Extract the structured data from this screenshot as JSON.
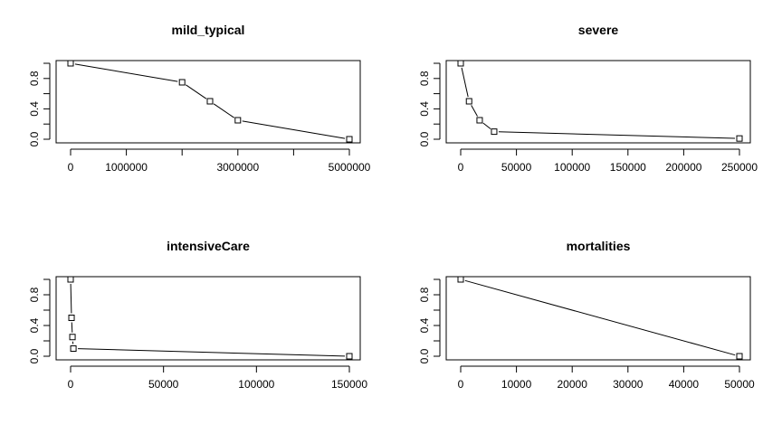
{
  "chart_data": [
    {
      "type": "line",
      "title": "mild_typical",
      "xlabel": "",
      "ylabel": "",
      "marker": "square",
      "x": [
        0,
        2000000,
        2500000,
        3000000,
        5000000
      ],
      "y": [
        1.0,
        0.75,
        0.5,
        0.25,
        0.0
      ],
      "xlim": [
        0,
        5000000
      ],
      "ylim": [
        0,
        1
      ],
      "x_ticks": [
        0,
        1000000,
        2000000,
        3000000,
        4000000,
        5000000
      ],
      "x_tick_labels": [
        "0",
        "1000000",
        "",
        "3000000",
        "",
        "5000000"
      ],
      "y_ticks": [
        0.0,
        0.2,
        0.4,
        0.6,
        0.8,
        1.0
      ],
      "y_tick_labels": [
        "0.0",
        "",
        "0.4",
        "",
        "0.8",
        ""
      ],
      "grid": false,
      "line_color": "#000000"
    },
    {
      "type": "line",
      "title": "severe",
      "xlabel": "",
      "ylabel": "",
      "marker": "square",
      "x": [
        0,
        7500,
        17000,
        30000,
        250000
      ],
      "y": [
        1.0,
        0.5,
        0.25,
        0.1,
        0.01
      ],
      "xlim": [
        0,
        250000
      ],
      "ylim": [
        0,
        1
      ],
      "x_ticks": [
        0,
        50000,
        100000,
        150000,
        200000,
        250000
      ],
      "x_tick_labels": [
        "0",
        "50000",
        "100000",
        "150000",
        "200000",
        "250000"
      ],
      "y_ticks": [
        0.0,
        0.2,
        0.4,
        0.6,
        0.8,
        1.0
      ],
      "y_tick_labels": [
        "0.0",
        "",
        "0.4",
        "",
        "0.8",
        ""
      ],
      "grid": false,
      "line_color": "#000000"
    },
    {
      "type": "line",
      "title": "intensiveCare",
      "xlabel": "",
      "ylabel": "",
      "marker": "square",
      "x": [
        0,
        500,
        1000,
        1500,
        150000
      ],
      "y": [
        1.0,
        0.5,
        0.25,
        0.1,
        0.0
      ],
      "xlim": [
        0,
        150000
      ],
      "ylim": [
        0,
        1
      ],
      "x_ticks": [
        0,
        50000,
        100000,
        150000
      ],
      "x_tick_labels": [
        "0",
        "50000",
        "100000",
        "150000"
      ],
      "y_ticks": [
        0.0,
        0.2,
        0.4,
        0.6,
        0.8,
        1.0
      ],
      "y_tick_labels": [
        "0.0",
        "",
        "0.4",
        "",
        "0.8",
        ""
      ],
      "grid": false,
      "line_color": "#000000"
    },
    {
      "type": "line",
      "title": "mortalities",
      "xlabel": "",
      "ylabel": "",
      "marker": "square",
      "x": [
        0,
        50000
      ],
      "y": [
        1.0,
        0.0
      ],
      "xlim": [
        0,
        50000
      ],
      "ylim": [
        0,
        1
      ],
      "x_ticks": [
        0,
        10000,
        20000,
        30000,
        40000,
        50000
      ],
      "x_tick_labels": [
        "0",
        "10000",
        "20000",
        "30000",
        "40000",
        "50000"
      ],
      "y_ticks": [
        0.0,
        0.2,
        0.4,
        0.6,
        0.8,
        1.0
      ],
      "y_tick_labels": [
        "0.0",
        "",
        "0.4",
        "",
        "0.8",
        ""
      ],
      "grid": false,
      "line_color": "#000000"
    }
  ]
}
